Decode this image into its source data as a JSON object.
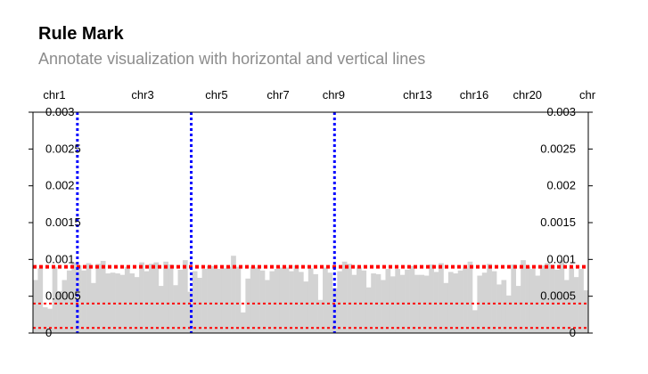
{
  "page": {
    "title": "Rule Mark",
    "subtitle": "Annotate visualization with horizontal and vertical lines"
  },
  "chart_data": {
    "type": "bar",
    "chromosomes": [
      {
        "label": "chr1",
        "start": 0.0
      },
      {
        "label": "chr3",
        "start": 0.159
      },
      {
        "label": "chr5",
        "start": 0.292
      },
      {
        "label": "chr7",
        "start": 0.403
      },
      {
        "label": "chr9",
        "start": 0.503
      },
      {
        "label": "chr13",
        "start": 0.654
      },
      {
        "label": "chr16",
        "start": 0.756
      },
      {
        "label": "chr20",
        "start": 0.852
      },
      {
        "label": "chr",
        "start": 0.96
      }
    ],
    "values": [
      0.00072,
      0.00088,
      0.00035,
      0.00033,
      0.0009,
      0.00057,
      0.00072,
      0.00085,
      0.00096,
      0.00092,
      0.00085,
      0.00095,
      0.00068,
      0.00094,
      0.00098,
      0.00081,
      0.00082,
      0.00081,
      0.00079,
      0.0009,
      0.00081,
      0.00076,
      0.00096,
      0.00084,
      0.00094,
      0.00096,
      0.00064,
      0.00097,
      0.00093,
      0.00065,
      0.00086,
      0.00099,
      0.00056,
      0.00084,
      0.00075,
      0.00087,
      0.00091,
      0.00091,
      0.00087,
      0.00088,
      0.0009,
      0.00105,
      0.0009,
      0.00028,
      0.00074,
      0.0009,
      0.00089,
      0.00085,
      0.00072,
      0.00084,
      0.00087,
      0.00089,
      0.00089,
      0.00084,
      0.00092,
      0.00083,
      0.0007,
      0.00088,
      0.0008,
      0.00045,
      0.00089,
      0.00082,
      0.00061,
      0.00084,
      0.00097,
      0.00094,
      0.00079,
      0.00089,
      0.00085,
      0.00062,
      0.00081,
      0.0008,
      0.00072,
      0.00087,
      0.00077,
      0.00087,
      0.00079,
      0.00086,
      0.00091,
      0.00079,
      0.00079,
      0.00078,
      0.00093,
      0.00083,
      0.00095,
      0.00068,
      0.00083,
      0.00081,
      0.00085,
      0.00089,
      0.00097,
      0.00031,
      0.00078,
      0.00082,
      0.00094,
      0.00084,
      0.00066,
      0.00072,
      0.00051,
      0.00093,
      0.00064,
      0.00099,
      0.0009,
      0.00087,
      0.00078,
      0.00092,
      0.00095,
      0.00093,
      0.00086,
      0.00099,
      0.00072,
      0.00088,
      0.00076,
      0.00087,
      0.00058
    ],
    "ylim": [
      0,
      0.003
    ],
    "yticks": [
      0,
      0.0005,
      0.001,
      0.0015,
      0.002,
      0.0025,
      0.003
    ],
    "ytick_labels": [
      "0",
      "0.0005",
      "0.001",
      "0.0015",
      "0.002",
      "0.0025",
      "0.003"
    ],
    "hrules": [
      {
        "y": 0.0009,
        "style": "dotted-thick"
      },
      {
        "y": 0.0004,
        "style": "dashed"
      },
      {
        "y": 7e-05,
        "style": "dashed"
      }
    ],
    "vrules": [
      0.08,
      0.285,
      0.543
    ],
    "colors": {
      "bar": "#d3d3d3",
      "hrule": "#ff0000",
      "vrule": "#0000ff",
      "axis": "#000000"
    }
  }
}
